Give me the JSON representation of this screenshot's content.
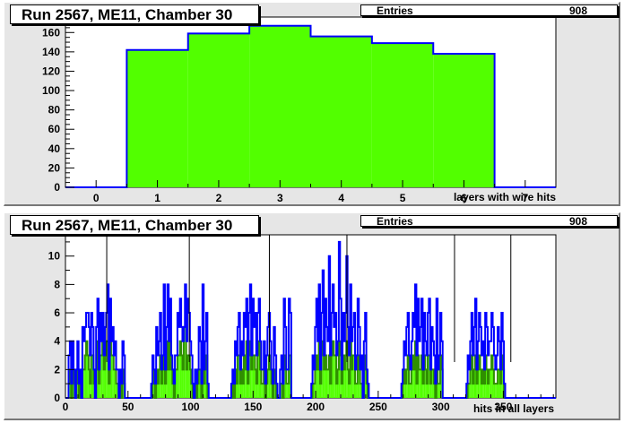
{
  "chart_data": [
    {
      "type": "bar",
      "title": "Run 2567, ME11, Chamber 30",
      "stats": {
        "label": "Entries",
        "value": "908"
      },
      "xlabel": "layers with wire hits",
      "ylabel": "",
      "categories": [
        1,
        2,
        3,
        4,
        5,
        6
      ],
      "values": [
        142,
        159,
        167,
        156,
        149,
        138
      ],
      "xlim": [
        -0.5,
        7.5
      ],
      "ylim": [
        0,
        176
      ],
      "xticks": [
        "0",
        "1",
        "2",
        "3",
        "4",
        "5",
        "6",
        "7"
      ],
      "yticks": [
        "0",
        "20",
        "40",
        "60",
        "80",
        "100",
        "120",
        "140",
        "160"
      ],
      "fill_color": "#52ff00",
      "line_color": "#0000ff",
      "grid": false
    },
    {
      "type": "bar",
      "title": "Run 2567, ME11, Chamber 30",
      "stats": {
        "label": "Entries",
        "value": "908"
      },
      "xlabel": "hits in all layers",
      "ylabel": "",
      "xlim": [
        0,
        392
      ],
      "ylim": [
        0,
        11.5
      ],
      "xticks": [
        "0",
        "50",
        "100",
        "150",
        "200",
        "250",
        "300",
        "350"
      ],
      "yticks": [
        "0",
        "2",
        "4",
        "6",
        "8",
        "10"
      ],
      "total_hits_line_color": "#0000ff",
      "wire_hits_fill_color": "#52ff00",
      "vertical_markers": [
        33,
        99,
        163,
        225,
        311,
        356
      ],
      "marker_color": "#000000",
      "series": [
        {
          "name": "",
          "x_start": 1,
          "values": [
            0,
            0,
            3,
            4,
            1,
            4,
            2,
            0,
            2,
            4,
            1,
            2,
            0,
            5,
            4,
            5,
            6,
            6,
            5,
            3,
            6,
            5,
            2,
            0,
            5,
            7,
            2,
            6,
            4,
            6,
            3,
            5,
            6,
            8,
            2,
            7,
            4,
            5,
            3,
            4,
            2,
            2,
            0,
            2,
            1,
            4,
            3,
            0,
            0,
            0,
            0,
            0,
            0,
            0,
            0,
            0,
            0,
            0,
            0,
            0,
            0,
            0,
            0,
            0,
            0,
            0,
            0,
            0,
            1,
            3,
            2,
            1,
            5,
            3,
            4,
            6,
            2,
            3,
            8,
            2,
            5,
            8,
            4,
            7,
            3,
            2,
            1,
            3,
            3,
            6,
            5,
            7,
            5,
            4,
            5,
            8,
            4,
            7,
            6,
            4,
            3,
            1,
            0,
            2,
            1,
            2,
            5,
            4,
            1,
            8,
            2,
            4,
            6,
            1,
            0,
            0,
            0,
            0,
            0,
            0,
            0,
            0,
            0,
            0,
            0,
            0,
            0,
            0,
            0,
            0,
            0,
            0,
            1,
            2,
            1,
            4,
            3,
            5,
            6,
            2,
            4,
            3,
            6,
            5,
            7,
            2,
            6,
            8,
            3,
            7,
            5,
            6,
            3,
            6,
            7,
            4,
            2,
            2,
            4,
            1,
            3,
            5,
            6,
            4,
            2,
            1,
            5,
            3,
            1,
            0,
            0,
            2,
            3,
            1,
            7,
            5,
            2,
            2,
            7,
            6,
            0,
            0,
            0,
            0,
            0,
            0,
            0,
            0,
            0,
            0,
            0,
            0,
            0,
            0,
            0,
            0,
            1,
            3,
            2,
            5,
            7,
            4,
            8,
            2,
            6,
            9,
            3,
            7,
            5,
            4,
            10,
            3,
            6,
            8,
            5,
            6,
            3,
            4,
            11,
            7,
            2,
            6,
            4,
            6,
            10,
            5,
            3,
            8,
            4,
            5,
            6,
            2,
            3,
            7,
            5,
            2,
            3,
            0,
            4,
            6,
            2,
            1,
            0,
            0,
            0,
            0,
            0,
            0,
            0,
            0,
            0,
            0,
            0,
            0,
            0,
            0,
            0,
            0,
            0,
            0,
            0,
            0,
            0,
            0,
            0,
            0,
            0,
            0,
            1,
            2,
            4,
            3,
            5,
            6,
            3,
            2,
            4,
            6,
            5,
            8,
            3,
            7,
            4,
            5,
            7,
            2,
            6,
            4,
            3,
            6,
            7,
            2,
            5,
            4,
            3,
            1,
            7,
            2,
            3,
            6,
            4,
            0,
            0,
            0,
            0,
            0,
            0,
            0,
            0,
            0,
            0,
            0,
            0,
            0,
            0,
            0,
            0,
            0,
            0,
            0,
            1,
            3,
            2,
            4,
            6,
            3,
            5,
            7,
            2,
            4,
            6,
            5,
            3,
            4,
            2,
            6,
            5,
            3,
            4,
            4,
            6,
            5,
            3,
            2,
            3,
            5,
            4,
            2,
            6,
            4,
            1,
            0,
            0,
            0,
            0,
            0,
            0,
            0
          ]
        },
        {
          "name": "",
          "x_start": 1,
          "values": [
            0,
            0,
            1,
            2,
            0,
            2,
            1,
            0,
            1,
            2,
            0,
            1,
            0,
            2,
            2,
            3,
            4,
            3,
            2,
            1,
            3,
            3,
            1,
            0,
            2,
            4,
            1,
            3,
            3,
            4,
            2,
            3,
            4,
            4,
            1,
            4,
            3,
            3,
            2,
            2,
            1,
            1,
            0,
            1,
            0,
            2,
            1,
            0,
            0,
            0,
            0,
            0,
            0,
            0,
            0,
            0,
            0,
            0,
            0,
            0,
            0,
            0,
            0,
            0,
            0,
            0,
            0,
            0,
            0,
            2,
            1,
            0,
            2,
            1,
            2,
            3,
            1,
            2,
            3,
            1,
            2,
            4,
            2,
            4,
            2,
            1,
            0,
            2,
            2,
            3,
            3,
            4,
            3,
            2,
            5,
            5,
            2,
            3,
            3,
            2,
            1,
            0,
            0,
            1,
            0,
            1,
            2,
            2,
            0,
            3,
            1,
            2,
            3,
            0,
            0,
            0,
            0,
            0,
            0,
            0,
            0,
            0,
            0,
            0,
            0,
            0,
            0,
            0,
            0,
            0,
            0,
            0,
            0,
            1,
            0,
            2,
            1,
            3,
            3,
            1,
            2,
            1,
            3,
            2,
            4,
            1,
            3,
            4,
            2,
            3,
            3,
            2,
            1,
            3,
            4,
            2,
            1,
            1,
            2,
            0,
            1,
            2,
            3,
            2,
            1,
            0,
            2,
            1,
            0,
            0,
            0,
            1,
            1,
            0,
            3,
            2,
            1,
            1,
            3,
            3,
            0,
            0,
            0,
            0,
            0,
            0,
            0,
            0,
            0,
            0,
            0,
            0,
            0,
            0,
            0,
            0,
            0,
            1,
            1,
            2,
            3,
            2,
            4,
            1,
            3,
            4,
            2,
            3,
            2,
            2,
            3,
            1,
            3,
            4,
            3,
            3,
            1,
            2,
            4,
            3,
            1,
            3,
            2,
            3,
            4,
            2,
            1,
            4,
            2,
            3,
            3,
            1,
            1,
            3,
            2,
            1,
            1,
            0,
            2,
            3,
            1,
            0,
            0,
            0,
            0,
            0,
            0,
            0,
            0,
            0,
            0,
            0,
            0,
            0,
            0,
            0,
            0,
            0,
            0,
            0,
            0,
            0,
            0,
            0,
            0,
            0,
            0,
            0,
            0,
            1,
            2,
            1,
            2,
            3,
            1,
            1,
            2,
            3,
            2,
            4,
            1,
            3,
            2,
            2,
            3,
            1,
            3,
            2,
            1,
            3,
            3,
            1,
            2,
            2,
            1,
            0,
            3,
            1,
            1,
            3,
            2,
            0,
            0,
            0,
            0,
            0,
            0,
            0,
            0,
            0,
            0,
            0,
            0,
            0,
            0,
            0,
            0,
            0,
            0,
            0,
            0,
            1,
            1,
            2,
            3,
            1,
            2,
            3,
            1,
            2,
            3,
            2,
            1,
            2,
            1,
            3,
            2,
            1,
            2,
            2,
            3,
            2,
            1,
            1,
            1,
            2,
            2,
            1,
            3,
            2,
            0,
            0,
            0,
            0,
            0,
            0,
            0,
            0
          ]
        }
      ]
    }
  ]
}
